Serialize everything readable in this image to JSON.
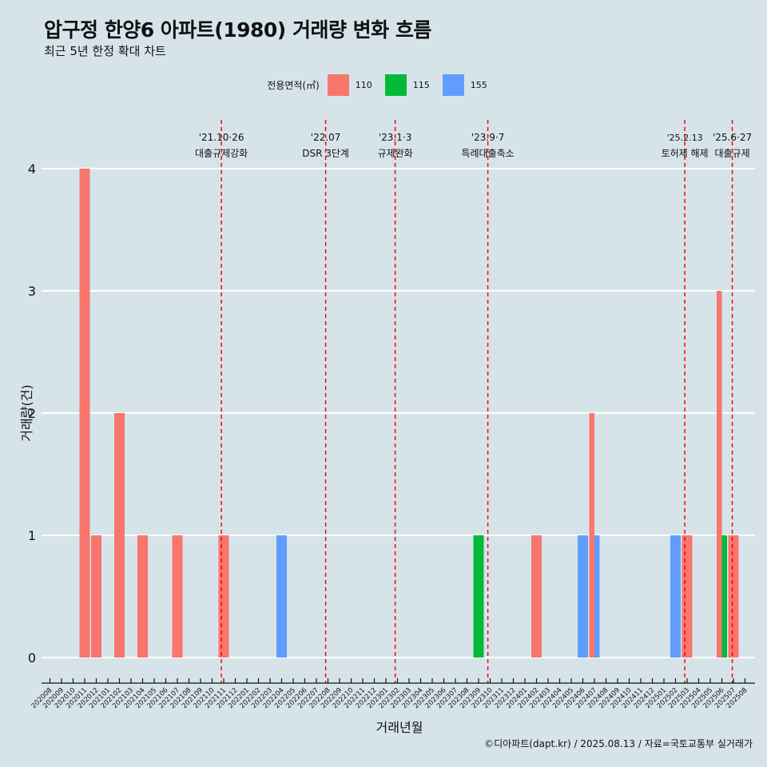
{
  "title": "압구정 한양6 아파트(1980) 거래량 변화 흐름",
  "subtitle": "최근 5년 한정 확대 차트",
  "caption": "©디아파트(dapt.kr) / 2025.08.13 / 자료=국토교통부 실거래가",
  "colors": {
    "background": "#d6e4ea",
    "110": "#f8766d",
    "115": "#00ba38",
    "155": "#619cff",
    "event_line": "#ff0000"
  },
  "chart_data": {
    "type": "bar",
    "title": "압구정 한양6 아파트(1980) 거래량 변화 흐름",
    "subtitle": "최근 5년 한정 확대 차트",
    "xlabel": "거래년월",
    "ylabel": "거래량(건)",
    "ylim": [
      0,
      4
    ],
    "yticks": [
      0,
      1,
      2,
      3,
      4
    ],
    "grid": "horizontal",
    "legend": {
      "title": "전용면적(㎡)",
      "position": "top",
      "entries": [
        "110",
        "115",
        "155"
      ]
    },
    "categories": [
      "202008",
      "202009",
      "202010",
      "202011",
      "202012",
      "202101",
      "202102",
      "202103",
      "202104",
      "202105",
      "202106",
      "202107",
      "202108",
      "202109",
      "202110",
      "202111",
      "202112",
      "202201",
      "202202",
      "202203",
      "202204",
      "202205",
      "202206",
      "202207",
      "202208",
      "202209",
      "202210",
      "202211",
      "202212",
      "202301",
      "202302",
      "202303",
      "202304",
      "202305",
      "202306",
      "202307",
      "202308",
      "202309",
      "202310",
      "202311",
      "202312",
      "202401",
      "202402",
      "202403",
      "202404",
      "202405",
      "202406",
      "202407",
      "202408",
      "202409",
      "202410",
      "202411",
      "202412",
      "202501",
      "202502",
      "202503",
      "202504",
      "202505",
      "202506",
      "202507",
      "202508"
    ],
    "bars": [
      {
        "month": "202011",
        "area": "110",
        "value": 4
      },
      {
        "month": "202012",
        "area": "110",
        "value": 1
      },
      {
        "month": "202102",
        "area": "110",
        "value": 2
      },
      {
        "month": "202104",
        "area": "110",
        "value": 1
      },
      {
        "month": "202107",
        "area": "110",
        "value": 1
      },
      {
        "month": "202111",
        "area": "110",
        "value": 1
      },
      {
        "month": "202204",
        "area": "155",
        "value": 1
      },
      {
        "month": "202309",
        "area": "115",
        "value": 1
      },
      {
        "month": "202402",
        "area": "110",
        "value": 1
      },
      {
        "month": "202406",
        "area": "155",
        "value": 1
      },
      {
        "month": "202407",
        "area": "110",
        "value": 2
      },
      {
        "month": "202407",
        "area": "155",
        "value": 1
      },
      {
        "month": "202502",
        "area": "155",
        "value": 1
      },
      {
        "month": "202503",
        "area": "110",
        "value": 1
      },
      {
        "month": "202506",
        "area": "110",
        "value": 3
      },
      {
        "month": "202506",
        "area": "115",
        "value": 1
      },
      {
        "month": "202507",
        "area": "110",
        "value": 1
      }
    ],
    "events": [
      {
        "date": "'21.10·26",
        "label": "대출규제강화",
        "month_pos": 14.8
      },
      {
        "date": "'22.07",
        "label": "DSR 3단계",
        "month_pos": 23.8
      },
      {
        "date": "'23.1·3",
        "label": "규제완화",
        "month_pos": 29.8
      },
      {
        "date": "'23.9·7",
        "label": "특례대출축소",
        "month_pos": 37.8
      },
      {
        "date": "'25.2.13",
        "label": "토허제 해제",
        "month_pos": 54.8
      },
      {
        "date": "'25.6·27",
        "label": "대출규제",
        "month_pos": 58.9
      }
    ]
  }
}
